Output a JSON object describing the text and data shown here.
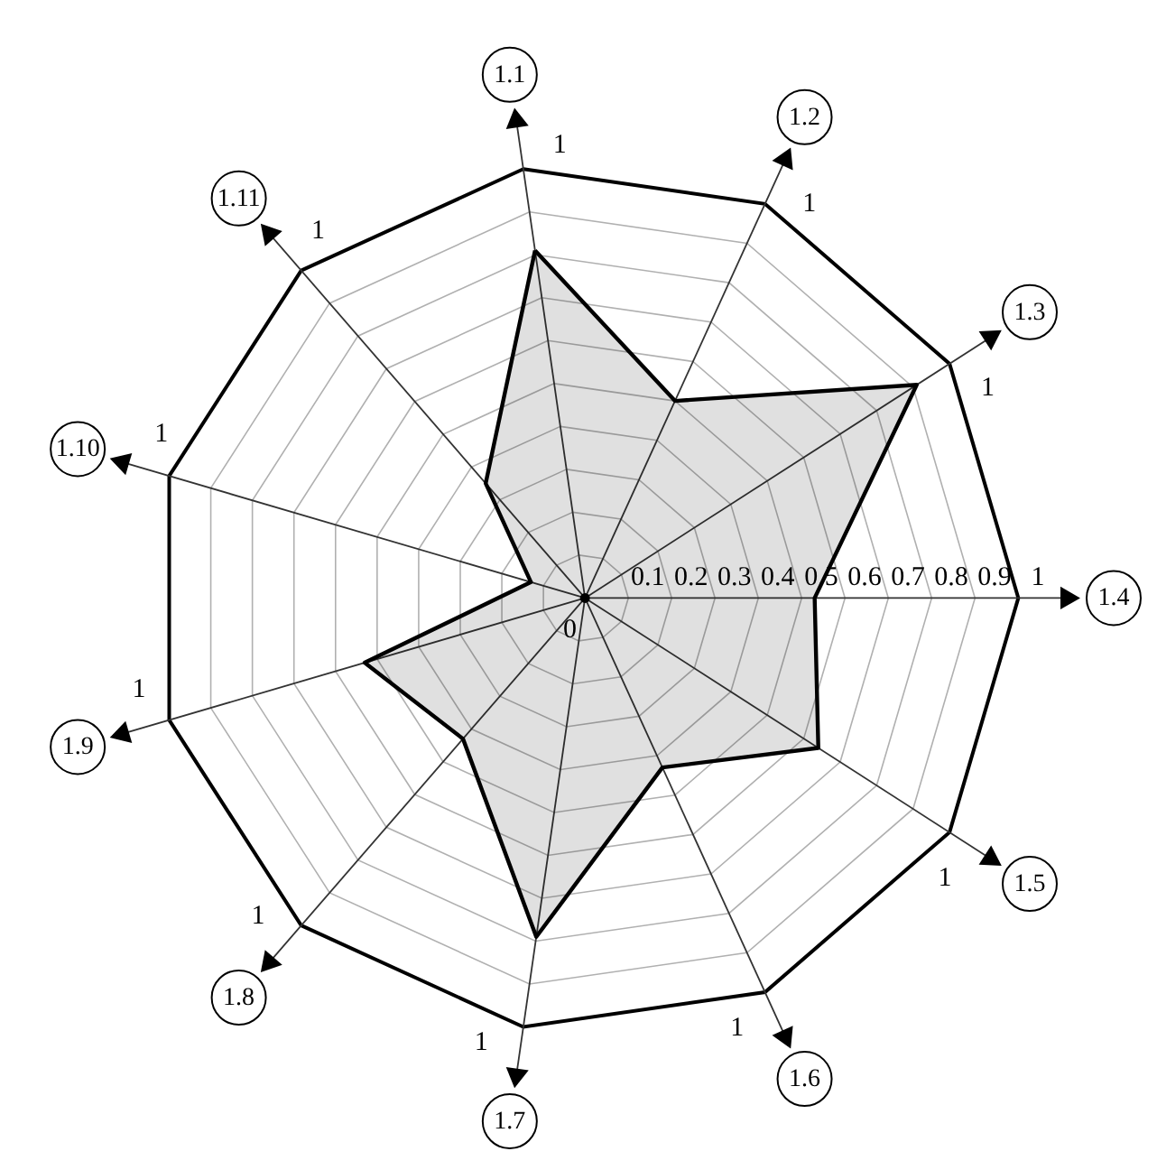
{
  "chart_data": {
    "type": "radar",
    "categories": [
      "1.1",
      "1.2",
      "1.3",
      "1.4",
      "1.5",
      "1.6",
      "1.7",
      "1.8",
      "1.9",
      "1.10",
      "1.11"
    ],
    "series": [
      {
        "color": "#000000",
        "values": [
          0.81,
          0.5,
          0.91,
          0.53,
          0.64,
          0.43,
          0.79,
          0.43,
          0.53,
          0.13,
          0.35
        ]
      }
    ],
    "ylim": [
      0,
      1
    ],
    "yticks": [
      0,
      0.1,
      0.2,
      0.3,
      0.4,
      0.5,
      0.6,
      0.7,
      0.8,
      0.9,
      1
    ],
    "grid": true,
    "annotations": [
      "1",
      "1",
      "1",
      "1",
      "1",
      "1",
      "1",
      "1",
      "1",
      "1"
    ]
  }
}
